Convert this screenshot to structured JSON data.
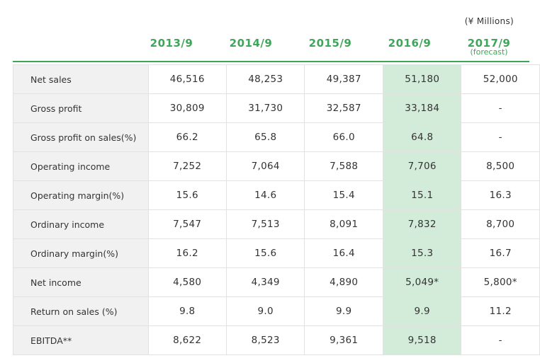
{
  "units": "(¥ Millions)",
  "columns": [
    {
      "year": "2013/9",
      "sub": ""
    },
    {
      "year": "2014/9",
      "sub": ""
    },
    {
      "year": "2015/9",
      "sub": ""
    },
    {
      "year": "2016/9",
      "sub": ""
    },
    {
      "year": "2017/9",
      "sub": "(forecast)"
    }
  ],
  "rows": [
    {
      "label": "Net sales",
      "values": [
        "46,516",
        "48,253",
        "49,387",
        "51,180",
        "52,000"
      ]
    },
    {
      "label": "Gross profit",
      "values": [
        "30,809",
        "31,730",
        "32,587",
        "33,184",
        "-"
      ]
    },
    {
      "label": "Gross profit on sales(%)",
      "values": [
        "66.2",
        "65.8",
        "66.0",
        "64.8",
        "-"
      ]
    },
    {
      "label": "Operating income",
      "values": [
        "7,252",
        "7,064",
        "7,588",
        "7,706",
        "8,500"
      ]
    },
    {
      "label": "Operating margin(%)",
      "values": [
        "15.6",
        "14.6",
        "15.4",
        "15.1",
        "16.3"
      ]
    },
    {
      "label": "Ordinary income",
      "values": [
        "7,547",
        "7,513",
        "8,091",
        "7,832",
        "8,700"
      ]
    },
    {
      "label": "Ordinary margin(%)",
      "values": [
        "16.2",
        "15.6",
        "16.4",
        "15.3",
        "16.7"
      ]
    },
    {
      "label": "Net income",
      "values": [
        "4,580",
        "4,349",
        "4,890",
        "5,049*",
        "5,800*"
      ]
    },
    {
      "label": "Return on sales (%)",
      "values": [
        "9.8",
        "9.0",
        "9.9",
        "9.9",
        "11.2"
      ]
    },
    {
      "label": "EBITDA**",
      "values": [
        "8,622",
        "8,523",
        "9,361",
        "9,518",
        "-"
      ]
    }
  ],
  "colors": {
    "accent": "#3fa55a",
    "highlight": "#d2ecd9",
    "label_bg": "#f1f1f1"
  }
}
